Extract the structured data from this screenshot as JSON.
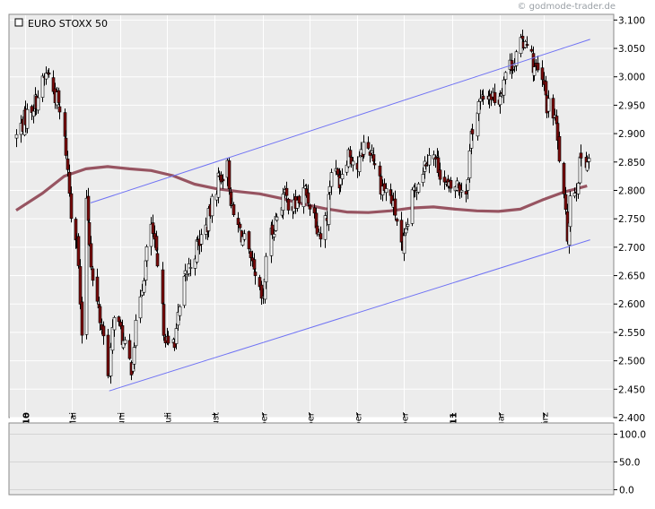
{
  "watermark": "© godmode-trader.de",
  "colors": {
    "panel_bg": "#ececec",
    "grid": "#ffffff",
    "candle_body_up": "#ffffff",
    "candle_body_down": "#7a0b0b",
    "candle_wick": "#000000",
    "ma": "#8e4452",
    "trendline": "#6f72f4",
    "axis_text": "#000000"
  },
  "chart_data": [
    {
      "type": "candlestick",
      "title": "EURO STOXX 50",
      "legend_placement": "top-left",
      "ylim": [
        2400,
        3110
      ],
      "yticks": [
        2400,
        2450,
        2500,
        2550,
        2600,
        2650,
        2700,
        2750,
        2800,
        2850,
        2900,
        2950,
        3000,
        3050,
        3100
      ],
      "ytick_labels": [
        "2.400",
        "2.450",
        "2.500",
        "2.550",
        "2.600",
        "2.650",
        "2.700",
        "2.750",
        "2.800",
        "2.850",
        "2.900",
        "2.950",
        "3.000",
        "3.050",
        "3.100"
      ],
      "grid": true,
      "x_months": [
        {
          "label": "April 10",
          "bold": true,
          "start": "2010-04-01"
        },
        {
          "label": "Mai",
          "bold": false,
          "start": "2010-05-01"
        },
        {
          "label": "Juni",
          "bold": false,
          "start": "2010-06-01"
        },
        {
          "label": "Juli",
          "bold": false,
          "start": "2010-07-01"
        },
        {
          "label": "August",
          "bold": false,
          "start": "2010-08-01"
        },
        {
          "label": "September",
          "bold": false,
          "start": "2010-09-01"
        },
        {
          "label": "Oktober",
          "bold": false,
          "start": "2010-10-01"
        },
        {
          "label": "November",
          "bold": false,
          "start": "2010-11-01"
        },
        {
          "label": "Dezember",
          "bold": false,
          "start": "2010-12-01"
        },
        {
          "label": "Januar 11",
          "bold": true,
          "start": "2011-01-01"
        },
        {
          "label": "Februar",
          "bold": false,
          "start": "2011-02-01"
        },
        {
          "label": "März",
          "bold": false,
          "start": "2011-03-01"
        }
      ],
      "x_range": [
        "2010-03-26",
        "2011-03-30"
      ],
      "close_path": [
        [
          "2010-03-26",
          2895
        ],
        [
          "2010-04-01",
          2930
        ],
        [
          "2010-04-08",
          2960
        ],
        [
          "2010-04-15",
          3010
        ],
        [
          "2010-04-22",
          2950
        ],
        [
          "2010-04-27",
          2870
        ],
        [
          "2010-04-30",
          2760
        ],
        [
          "2010-05-04",
          2720
        ],
        [
          "2010-05-06",
          2600
        ],
        [
          "2010-05-07",
          2530
        ],
        [
          "2010-05-10",
          2790
        ],
        [
          "2010-05-14",
          2640
        ],
        [
          "2010-05-20",
          2560
        ],
        [
          "2010-05-25",
          2470
        ],
        [
          "2010-05-28",
          2590
        ],
        [
          "2010-06-04",
          2520
        ],
        [
          "2010-06-08",
          2490
        ],
        [
          "2010-06-14",
          2620
        ],
        [
          "2010-06-21",
          2740
        ],
        [
          "2010-06-25",
          2660
        ],
        [
          "2010-06-29",
          2560
        ],
        [
          "2010-07-02",
          2520
        ],
        [
          "2010-07-06",
          2540
        ],
        [
          "2010-07-13",
          2650
        ],
        [
          "2010-07-20",
          2700
        ],
        [
          "2010-07-27",
          2740
        ],
        [
          "2010-08-03",
          2820
        ],
        [
          "2010-08-09",
          2840
        ],
        [
          "2010-08-12",
          2760
        ],
        [
          "2010-08-20",
          2710
        ],
        [
          "2010-08-27",
          2640
        ],
        [
          "2010-09-01",
          2600
        ],
        [
          "2010-09-03",
          2690
        ],
        [
          "2010-09-08",
          2740
        ],
        [
          "2010-09-14",
          2790
        ],
        [
          "2010-09-21",
          2770
        ],
        [
          "2010-09-28",
          2800
        ],
        [
          "2010-10-05",
          2750
        ],
        [
          "2010-10-08",
          2720
        ],
        [
          "2010-10-12",
          2760
        ],
        [
          "2010-10-15",
          2840
        ],
        [
          "2010-10-20",
          2820
        ],
        [
          "2010-10-26",
          2870
        ],
        [
          "2010-11-01",
          2840
        ],
        [
          "2010-11-05",
          2880
        ],
        [
          "2010-11-10",
          2870
        ],
        [
          "2010-11-16",
          2810
        ],
        [
          "2010-11-22",
          2790
        ],
        [
          "2010-11-26",
          2750
        ],
        [
          "2010-11-30",
          2680
        ],
        [
          "2010-12-02",
          2730
        ],
        [
          "2010-12-07",
          2800
        ],
        [
          "2010-12-13",
          2840
        ],
        [
          "2010-12-17",
          2870
        ],
        [
          "2010-12-22",
          2850
        ],
        [
          "2010-12-29",
          2800
        ],
        [
          "2011-01-04",
          2810
        ],
        [
          "2011-01-10",
          2800
        ],
        [
          "2011-01-13",
          2900
        ],
        [
          "2011-01-18",
          2950
        ],
        [
          "2011-01-24",
          2970
        ],
        [
          "2011-01-31",
          2960
        ],
        [
          "2011-02-04",
          3010
        ],
        [
          "2011-02-10",
          3030
        ],
        [
          "2011-02-15",
          3060
        ],
        [
          "2011-02-18",
          3070
        ],
        [
          "2011-02-22",
          3020
        ],
        [
          "2011-02-28",
          2990
        ],
        [
          "2011-03-03",
          2950
        ],
        [
          "2011-03-08",
          2930
        ],
        [
          "2011-03-11",
          2860
        ],
        [
          "2011-03-14",
          2780
        ],
        [
          "2011-03-16",
          2720
        ],
        [
          "2011-03-18",
          2790
        ],
        [
          "2011-03-22",
          2810
        ],
        [
          "2011-03-25",
          2860
        ],
        [
          "2011-03-29",
          2855
        ]
      ],
      "moving_average": [
        [
          "2010-03-26",
          2765
        ],
        [
          "2010-04-12",
          2795
        ],
        [
          "2010-04-26",
          2825
        ],
        [
          "2010-05-10",
          2838
        ],
        [
          "2010-05-24",
          2842
        ],
        [
          "2010-06-07",
          2838
        ],
        [
          "2010-06-21",
          2835
        ],
        [
          "2010-07-05",
          2826
        ],
        [
          "2010-07-19",
          2811
        ],
        [
          "2010-08-02",
          2803
        ],
        [
          "2010-08-16",
          2798
        ],
        [
          "2010-08-30",
          2794
        ],
        [
          "2010-09-13",
          2786
        ],
        [
          "2010-09-27",
          2776
        ],
        [
          "2010-10-11",
          2768
        ],
        [
          "2010-10-25",
          2762
        ],
        [
          "2010-11-08",
          2761
        ],
        [
          "2010-11-22",
          2764
        ],
        [
          "2010-12-06",
          2769
        ],
        [
          "2010-12-20",
          2771
        ],
        [
          "2011-01-03",
          2767
        ],
        [
          "2011-01-17",
          2764
        ],
        [
          "2011-01-31",
          2763
        ],
        [
          "2011-02-14",
          2767
        ],
        [
          "2011-02-28",
          2783
        ],
        [
          "2011-03-14",
          2797
        ],
        [
          "2011-03-29",
          2808
        ]
      ],
      "trendlines": [
        {
          "name": "upper channel",
          "from": [
            "2010-05-13",
            2778
          ],
          "to": [
            "2011-03-31",
            3066
          ]
        },
        {
          "name": "lower channel",
          "from": [
            "2010-05-25",
            2447
          ],
          "to": [
            "2011-03-31",
            2713
          ]
        }
      ]
    },
    {
      "type": "line",
      "ylim": [
        0,
        110
      ],
      "yticks": [
        0,
        50,
        100
      ],
      "ytick_labels": [
        "0.0",
        "50.0",
        "100.0"
      ],
      "grid": true
    }
  ]
}
